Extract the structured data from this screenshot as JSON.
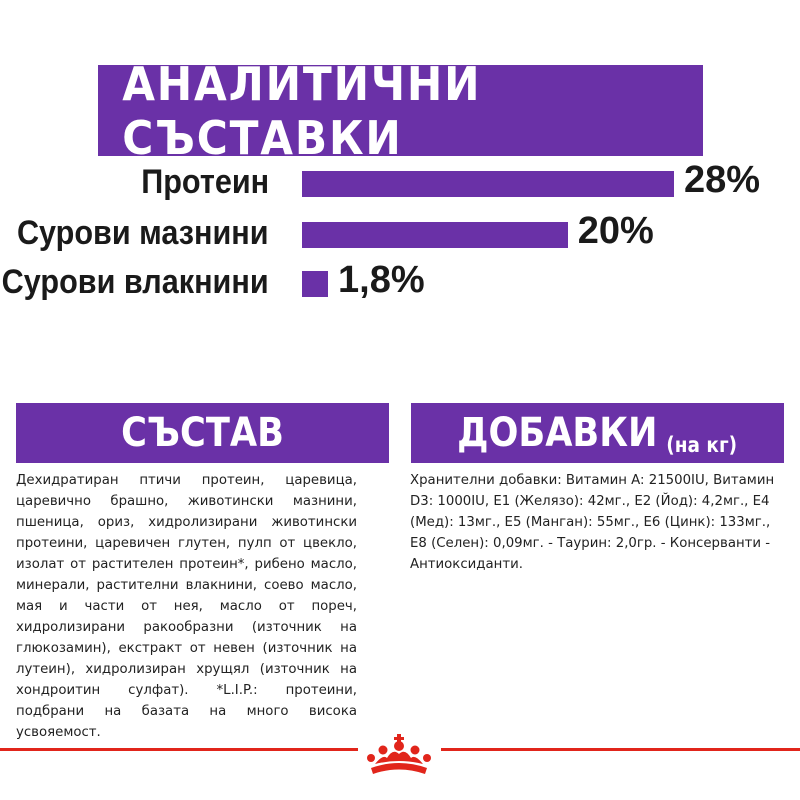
{
  "colors": {
    "accent": "#6a31a7",
    "brand_red": "#e1251b",
    "text": "#1a1a1a"
  },
  "banner": {
    "title": "АНАЛИТИЧНИ СЪСТАВКИ"
  },
  "chart_data": {
    "type": "bar",
    "orientation": "horizontal",
    "title": "АНАЛИТИЧНИ СЪСТАВКИ",
    "categories": [
      "Протеин",
      "Сурови мазнини",
      "Сурови влакнини"
    ],
    "values": [
      28,
      20,
      1.8
    ],
    "value_labels": [
      "28%",
      "20%",
      "1,8%"
    ],
    "unit": "%",
    "xlim": [
      0,
      28
    ],
    "grid": false,
    "legend": "none"
  },
  "composition": {
    "title": "СЪСТАВ",
    "text": "Дехидратиран птичи протеин, царевица, царевично брашно, животински мазнини, пшеница, ориз, хидролизирани животински протеини, царевичен глутен, пулп от цвекло, изолат от растителен протеин*, рибено масло, минерали, растителни влакнини, соево масло, мая и части от нея, масло от пореч, хидролизирани ракообразни (източник на глюкозамин), екстракт от невен (източник на лутеин), хидролизиран хрущял (източник на хондроитин сулфат). *L.I.P.: протеини, подбрани на базата на много висока усвояемост."
  },
  "additives": {
    "title": "ДОБАВКИ",
    "subtitle": "(на кг)",
    "text": "Хранителни добавки: Витамин A: 21500IU, Витамин D3: 1000IU, E1 (Желязо): 42мг., E2 (Йод): 4,2мг., E4 (Мед): 13мг., E5 (Манган): 55мг., E6 (Цинк): 133мг., E8 (Селен): 0,09мг. - Таурин: 2,0гр. - Консерванти - Антиоксиданти."
  },
  "footer": {
    "logo_icon": "crown-logo-icon"
  }
}
